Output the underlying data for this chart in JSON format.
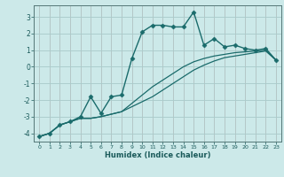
{
  "title": "",
  "xlabel": "Humidex (Indice chaleur)",
  "ylabel": "",
  "bg_color": "#cce9e9",
  "grid_color": "#aacccc",
  "line_color": "#1a6b6b",
  "xlim": [
    -0.5,
    23.5
  ],
  "ylim": [
    -4.5,
    3.7
  ],
  "yticks": [
    -4,
    -3,
    -2,
    -1,
    0,
    1,
    2,
    3
  ],
  "xticks": [
    0,
    1,
    2,
    3,
    4,
    5,
    6,
    7,
    8,
    9,
    10,
    11,
    12,
    13,
    14,
    15,
    16,
    17,
    18,
    19,
    20,
    21,
    22,
    23
  ],
  "series": [
    {
      "x": [
        0,
        1,
        2,
        3,
        4,
        5,
        6,
        7,
        8,
        9,
        10,
        11,
        12,
        13,
        14,
        15,
        16,
        17,
        18,
        19,
        20,
        21,
        22,
        23
      ],
      "y": [
        -4.2,
        -4.0,
        -3.5,
        -3.3,
        -3.0,
        -1.8,
        -2.8,
        -1.8,
        -1.7,
        0.5,
        2.1,
        2.5,
        2.5,
        2.4,
        2.4,
        3.3,
        1.3,
        1.7,
        1.2,
        1.3,
        1.1,
        1.0,
        1.1,
        0.4
      ],
      "marker": "D",
      "markersize": 2.5,
      "linewidth": 1.0
    },
    {
      "x": [
        0,
        1,
        2,
        3,
        4,
        5,
        6,
        7,
        8,
        9,
        10,
        11,
        12,
        13,
        14,
        15,
        16,
        17,
        18,
        19,
        20,
        21,
        22,
        23
      ],
      "y": [
        -4.2,
        -4.0,
        -3.5,
        -3.3,
        -3.1,
        -3.1,
        -3.0,
        -2.85,
        -2.7,
        -2.2,
        -1.7,
        -1.2,
        -0.8,
        -0.4,
        0.0,
        0.3,
        0.5,
        0.65,
        0.75,
        0.85,
        0.9,
        0.95,
        1.0,
        0.4
      ],
      "marker": "None",
      "markersize": 0,
      "linewidth": 0.9
    },
    {
      "x": [
        0,
        1,
        2,
        3,
        4,
        5,
        6,
        7,
        8,
        9,
        10,
        11,
        12,
        13,
        14,
        15,
        16,
        17,
        18,
        19,
        20,
        21,
        22,
        23
      ],
      "y": [
        -4.2,
        -4.0,
        -3.5,
        -3.3,
        -3.1,
        -3.1,
        -3.0,
        -2.85,
        -2.7,
        -2.4,
        -2.1,
        -1.8,
        -1.4,
        -1.0,
        -0.6,
        -0.2,
        0.1,
        0.35,
        0.55,
        0.65,
        0.75,
        0.85,
        0.95,
        0.4
      ],
      "marker": "None",
      "markersize": 0,
      "linewidth": 0.9
    }
  ]
}
